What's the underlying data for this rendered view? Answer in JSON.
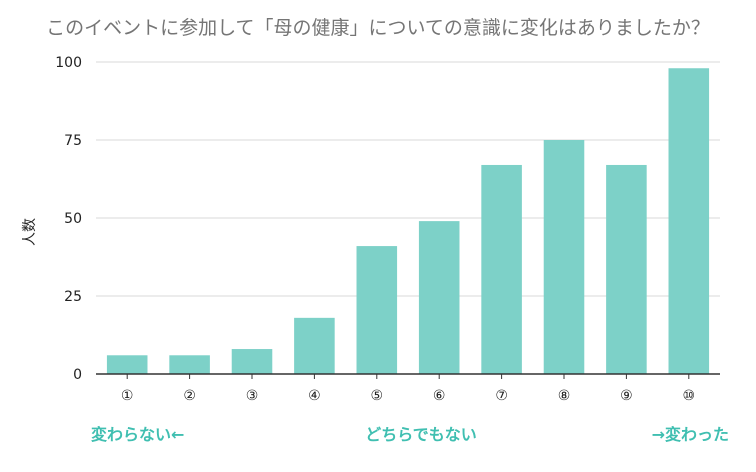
{
  "chart_data": {
    "type": "bar",
    "title": "このイベントに参加して「母の健康」についての意識に変化はありましたか？",
    "ylabel": "人数",
    "xlabel": "",
    "categories": [
      "①",
      "②",
      "③",
      "④",
      "⑤",
      "⑥",
      "⑦",
      "⑧",
      "⑨",
      "⑩"
    ],
    "values": [
      6,
      6,
      8,
      18,
      41,
      49,
      67,
      75,
      67,
      98
    ],
    "ylim": [
      0,
      100
    ],
    "yticks": [
      0,
      25,
      50,
      75,
      100
    ],
    "grid": true,
    "legend": "none",
    "bar_color": "#7dd1c8",
    "annotation_color": "#40bfb1",
    "annotations": {
      "left": "変わらない←",
      "center": "どちらでもない",
      "right": "→変わった"
    }
  }
}
